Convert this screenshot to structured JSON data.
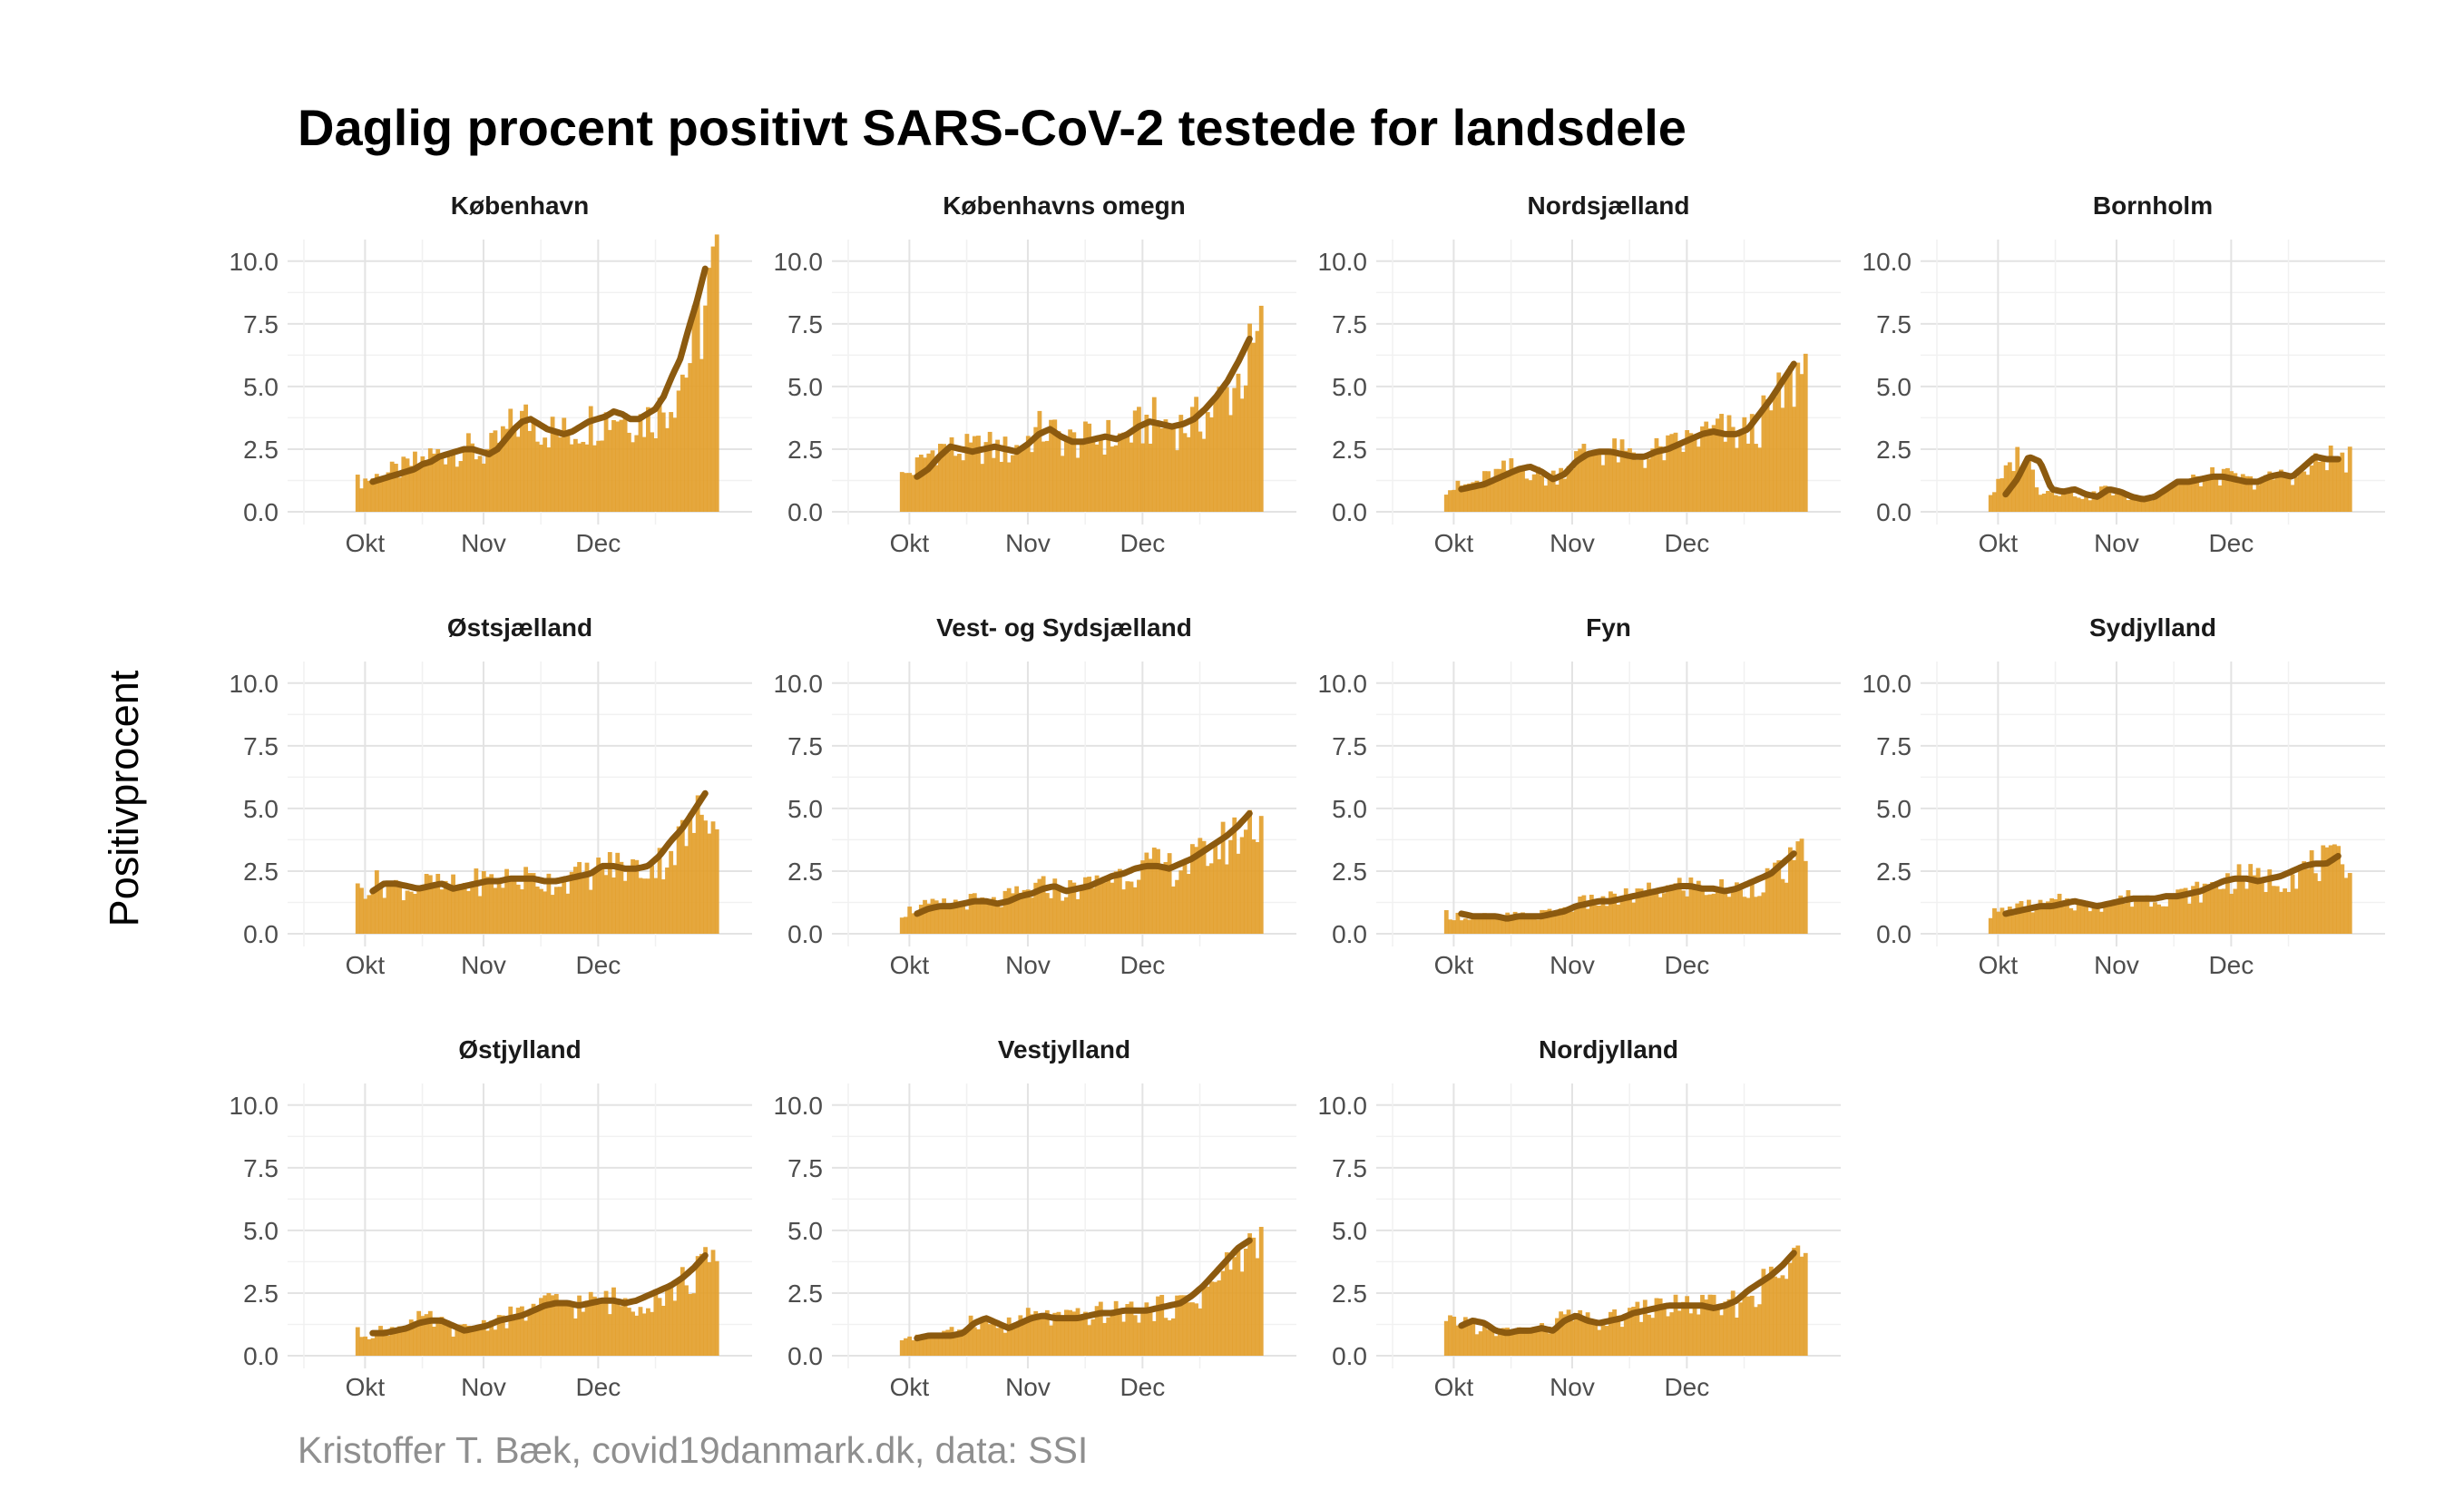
{
  "title": "Daglig procent positivt SARS-CoV-2 testede for landsdele",
  "caption": "Kristoffer T. Bæk, covid19danmark.dk, data: SSI",
  "colors": {
    "bar": "#E3A02D",
    "trend": "#8C5A0F",
    "grid": "#e3e3e3"
  },
  "chart_data": {
    "type": "bar",
    "ylabel": "Positivprocent",
    "ylim": [
      0,
      10.5
    ],
    "yticks": [
      "0.0",
      "2.5",
      "5.0",
      "7.5",
      "10.0"
    ],
    "x_start": "2020-09-15",
    "xticks": [
      {
        "date": "2020-10-01",
        "label": "Okt"
      },
      {
        "date": "2020-11-01",
        "label": "Nov"
      },
      {
        "date": "2020-12-01",
        "label": "Dec"
      }
    ],
    "grid": true,
    "panels": [
      {
        "name": "København",
        "values": [
          1.2,
          1.3,
          1.4,
          1.5,
          1.6,
          1.7,
          1.9,
          2.0,
          2.2,
          2.3,
          2.4,
          2.5,
          2.5,
          2.4,
          2.3,
          2.5,
          2.9,
          3.3,
          3.6,
          3.7,
          3.5,
          3.3,
          3.2,
          3.1,
          3.2,
          3.4,
          3.6,
          3.7,
          3.8,
          4.0,
          3.9,
          3.7,
          3.7,
          3.9,
          4.1,
          4.6,
          5.4,
          6.1,
          7.3,
          8.4,
          9.7
        ]
      },
      {
        "name": "Københavns omegn",
        "values": [
          1.4,
          1.7,
          2.2,
          2.6,
          2.5,
          2.4,
          2.5,
          2.6,
          2.5,
          2.4,
          2.7,
          3.1,
          3.3,
          3.0,
          2.8,
          2.8,
          2.9,
          3.0,
          2.9,
          3.1,
          3.4,
          3.6,
          3.5,
          3.4,
          3.5,
          3.7,
          4.1,
          4.6,
          5.2,
          6.0,
          6.9
        ]
      },
      {
        "name": "Nordsjælland",
        "values": [
          0.9,
          1.0,
          1.1,
          1.3,
          1.5,
          1.7,
          1.8,
          1.6,
          1.3,
          1.5,
          2.0,
          2.3,
          2.4,
          2.4,
          2.3,
          2.2,
          2.2,
          2.4,
          2.5,
          2.7,
          2.9,
          3.1,
          3.2,
          3.1,
          3.1,
          3.3,
          3.9,
          4.5,
          5.2,
          5.9
        ]
      },
      {
        "name": "Bornholm",
        "values": [
          0.7,
          1.3,
          2.2,
          2.0,
          0.9,
          0.8,
          0.9,
          0.7,
          0.6,
          0.9,
          0.8,
          0.6,
          0.5,
          0.6,
          0.9,
          1.2,
          1.2,
          1.3,
          1.4,
          1.4,
          1.3,
          1.2,
          1.2,
          1.4,
          1.5,
          1.4,
          1.8,
          2.2,
          2.1,
          2.1
        ]
      },
      {
        "name": "Østsjælland",
        "values": [
          1.7,
          2.0,
          2.0,
          1.9,
          1.8,
          1.9,
          2.0,
          1.8,
          1.9,
          2.0,
          2.1,
          2.1,
          2.2,
          2.2,
          2.2,
          2.1,
          2.1,
          2.2,
          2.3,
          2.4,
          2.7,
          2.7,
          2.6,
          2.6,
          2.7,
          3.1,
          3.7,
          4.2,
          4.9,
          5.6
        ]
      },
      {
        "name": "Vest- og Sydsjælland",
        "values": [
          0.8,
          1.0,
          1.1,
          1.1,
          1.2,
          1.3,
          1.3,
          1.2,
          1.3,
          1.5,
          1.6,
          1.8,
          1.9,
          1.7,
          1.8,
          1.9,
          2.1,
          2.3,
          2.4,
          2.6,
          2.7,
          2.7,
          2.6,
          2.8,
          3.0,
          3.3,
          3.6,
          3.9,
          4.3,
          4.8
        ]
      },
      {
        "name": "Fyn",
        "values": [
          0.8,
          0.7,
          0.7,
          0.7,
          0.6,
          0.7,
          0.7,
          0.7,
          0.8,
          0.9,
          1.1,
          1.2,
          1.3,
          1.3,
          1.4,
          1.5,
          1.6,
          1.7,
          1.8,
          1.9,
          1.9,
          1.8,
          1.8,
          1.7,
          1.8,
          2.0,
          2.2,
          2.4,
          2.8,
          3.2
        ]
      },
      {
        "name": "Sydjylland",
        "values": [
          0.8,
          0.9,
          1.0,
          1.1,
          1.1,
          1.2,
          1.3,
          1.2,
          1.1,
          1.2,
          1.3,
          1.4,
          1.4,
          1.4,
          1.5,
          1.5,
          1.6,
          1.7,
          1.9,
          2.1,
          2.2,
          2.2,
          2.1,
          2.2,
          2.3,
          2.5,
          2.7,
          2.8,
          2.8,
          3.1
        ]
      },
      {
        "name": "Østjylland",
        "values": [
          0.9,
          0.9,
          1.0,
          1.1,
          1.3,
          1.4,
          1.4,
          1.2,
          1.0,
          1.1,
          1.2,
          1.4,
          1.5,
          1.6,
          1.8,
          2.0,
          2.1,
          2.1,
          2.0,
          2.1,
          2.2,
          2.2,
          2.1,
          2.2,
          2.4,
          2.6,
          2.8,
          3.1,
          3.5,
          4.0
        ]
      },
      {
        "name": "Vestjylland",
        "values": [
          0.7,
          0.8,
          0.8,
          0.8,
          0.9,
          1.3,
          1.5,
          1.3,
          1.1,
          1.3,
          1.5,
          1.6,
          1.5,
          1.5,
          1.5,
          1.6,
          1.7,
          1.7,
          1.8,
          1.8,
          1.8,
          1.9,
          2.0,
          2.1,
          2.4,
          2.8,
          3.3,
          3.8,
          4.3,
          4.6
        ]
      },
      {
        "name": "Nordjylland",
        "values": [
          1.2,
          1.4,
          1.3,
          1.0,
          0.9,
          1.0,
          1.0,
          1.1,
          1.0,
          1.4,
          1.6,
          1.4,
          1.3,
          1.4,
          1.5,
          1.7,
          1.8,
          1.9,
          2.0,
          2.0,
          2.0,
          2.0,
          1.9,
          2.0,
          2.2,
          2.6,
          2.9,
          3.2,
          3.6,
          4.1
        ]
      }
    ]
  }
}
